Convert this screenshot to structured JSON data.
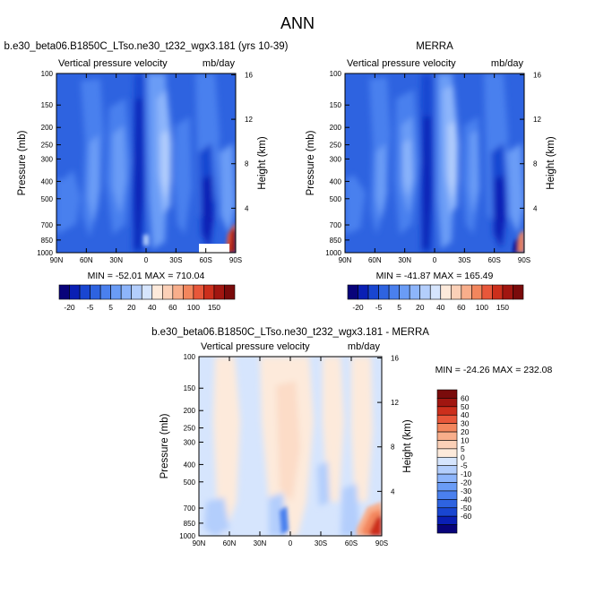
{
  "figure_title": "ANN",
  "palettes": {
    "top": [
      "#08037a",
      "#0a1fb4",
      "#1946d1",
      "#2e63e0",
      "#4a80ee",
      "#6a9cf6",
      "#8db5fb",
      "#b3cefc",
      "#d6e5fd",
      "#fdeadb",
      "#fbd0b7",
      "#f8ae8b",
      "#f3865d",
      "#e8573a",
      "#cc2f1c",
      "#a11610",
      "#7a0b0b"
    ],
    "diff": [
      "#08037a",
      "#0a1fb4",
      "#1946d1",
      "#2e63e0",
      "#4a80ee",
      "#6a9cf6",
      "#8db5fb",
      "#b3cefc",
      "#d6e5fd",
      "#fdeadb",
      "#fbd0b7",
      "#f8ae8b",
      "#f3865d",
      "#e8573a",
      "#cc2f1c",
      "#a11610",
      "#7a0b0b"
    ]
  },
  "chart_data": [
    {
      "type": "heatmap",
      "id": "model",
      "title": "b.e30_beta06.B1850C_LTso.ne30_t232_wgx3.181 (yrs 10-39)",
      "left_label": "Vertical pressure velocity",
      "right_label": "mb/day",
      "ylabel": "Pressure (mb)",
      "ylabel_right": "Height (km)",
      "x_ticks": [
        "90N",
        "60N",
        "30N",
        "0",
        "30S",
        "60S",
        "90S"
      ],
      "x_values": [
        90,
        60,
        30,
        0,
        -30,
        -60,
        -90
      ],
      "y_ticks": [
        "100",
        "150",
        "200",
        "250",
        "300",
        "400",
        "500",
        "700",
        "850",
        "1000"
      ],
      "y_values": [
        100,
        150,
        200,
        250,
        300,
        400,
        500,
        700,
        850,
        1000
      ],
      "height_ticks": [
        "16",
        "12",
        "8",
        "4"
      ],
      "height_values": [
        16,
        12,
        8,
        4
      ],
      "stats": "MIN = -52.01  MAX = 710.04",
      "min": -52.01,
      "max": 710.04
    },
    {
      "type": "heatmap",
      "id": "obs",
      "title": "MERRA",
      "left_label": "Vertical pressure velocity",
      "right_label": "mb/day",
      "ylabel": "Pressure (mb)",
      "ylabel_right": "Height (km)",
      "x_ticks": [
        "90N",
        "60N",
        "30N",
        "0",
        "30S",
        "60S",
        "90S"
      ],
      "x_values": [
        90,
        60,
        30,
        0,
        -30,
        -60,
        -90
      ],
      "y_ticks": [
        "100",
        "150",
        "200",
        "250",
        "300",
        "400",
        "500",
        "700",
        "850",
        "1000"
      ],
      "y_values": [
        100,
        150,
        200,
        250,
        300,
        400,
        500,
        700,
        850,
        1000
      ],
      "height_ticks": [
        "16",
        "12",
        "8",
        "4"
      ],
      "height_values": [
        16,
        12,
        8,
        4
      ],
      "stats": "MIN = -41.87  MAX = 165.49",
      "min": -41.87,
      "max": 165.49
    },
    {
      "type": "heatmap",
      "id": "diff",
      "title": "b.e30_beta06.B1850C_LTso.ne30_t232_wgx3.181 - MERRA",
      "left_label": "Vertical pressure velocity",
      "right_label": "mb/day",
      "ylabel": "Pressure (mb)",
      "ylabel_right": "Height (km)",
      "x_ticks": [
        "90N",
        "60N",
        "30N",
        "0",
        "30S",
        "60S",
        "90S"
      ],
      "x_values": [
        90,
        60,
        30,
        0,
        -30,
        -60,
        -90
      ],
      "y_ticks": [
        "100",
        "150",
        "200",
        "250",
        "300",
        "400",
        "500",
        "700",
        "850",
        "1000"
      ],
      "y_values": [
        100,
        150,
        200,
        250,
        300,
        400,
        500,
        700,
        850,
        1000
      ],
      "height_ticks": [
        "16",
        "12",
        "8",
        "4"
      ],
      "height_values": [
        16,
        12,
        8,
        4
      ],
      "stats": "MIN = -24.26  MAX = 232.08",
      "min": -24.26,
      "max": 232.08
    }
  ],
  "colorbars": {
    "top": {
      "labels": [
        "-20",
        "-5",
        "5",
        "20",
        "40",
        "60",
        "100",
        "150"
      ],
      "levels": [
        -70,
        -50,
        -40,
        -30,
        -20,
        -10,
        -5,
        0,
        5,
        10,
        20,
        30,
        40,
        50,
        60,
        80,
        100,
        150
      ]
    },
    "diff": {
      "labels": [
        "60",
        "50",
        "40",
        "30",
        "20",
        "10",
        "5",
        "0",
        "-5",
        "-10",
        "-20",
        "-30",
        "-40",
        "-50",
        "-60"
      ],
      "levels": [
        60,
        50,
        40,
        30,
        20,
        10,
        5,
        0,
        -5,
        -10,
        -20,
        -30,
        -40,
        -50,
        -60
      ]
    }
  }
}
